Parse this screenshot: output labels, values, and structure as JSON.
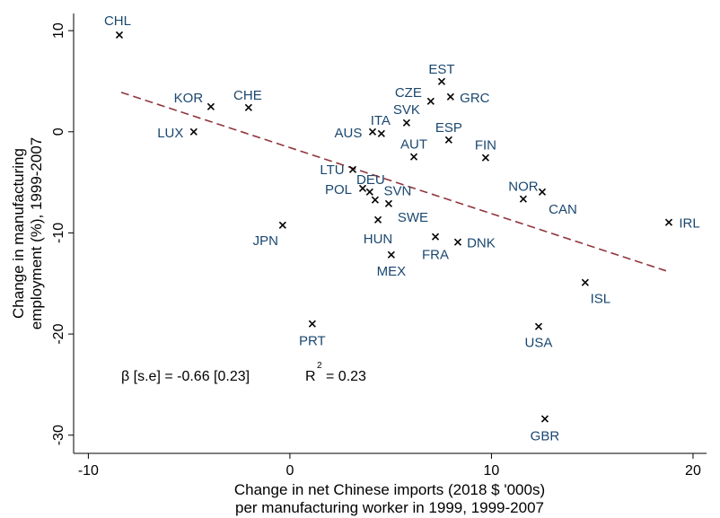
{
  "chart_data": {
    "type": "scatter",
    "x_label": [
      "Change in net Chinese imports (2018 $ '000s)",
      "per manufacturing worker in 1999, 1999-2007"
    ],
    "y_label": [
      "Change in manufacturing",
      "employment (%), 1999-2007"
    ],
    "annotation": [
      "β [s.e] = -0.66 [0.23]",
      "R",
      "2",
      "= 0.23"
    ],
    "labels": [
      "CHL",
      "KOR",
      "CHE",
      "LUX",
      "AUS",
      "ITA",
      "EST",
      "CZE",
      "GRC",
      "SVK",
      "ESP",
      "AUT",
      "FIN",
      "LTU",
      "DEU",
      "POL",
      "SVN",
      "SWE",
      "NOR",
      "CAN",
      "IRL",
      "JPN",
      "HUN",
      "FRA",
      "DNK",
      "MEX",
      "ISL",
      "PRT",
      "USA",
      "GBR"
    ],
    "x": [
      -8.46,
      -3.92,
      -2.05,
      -4.77,
      4.1,
      4.54,
      7.53,
      6.99,
      7.97,
      5.79,
      7.88,
      6.15,
      9.71,
      3.12,
      3.96,
      3.61,
      4.23,
      4.9,
      11.58,
      12.52,
      18.8,
      -0.36,
      4.37,
      7.22,
      8.33,
      5.03,
      14.65,
      1.11,
      12.34,
      12.65
    ],
    "y": [
      9.58,
      2.48,
      2.4,
      0.0,
      0.0,
      -0.18,
      4.97,
      3.02,
      3.46,
      0.89,
      -0.8,
      -2.48,
      -2.57,
      -3.73,
      -5.95,
      -5.59,
      -6.74,
      -7.1,
      -6.65,
      -5.95,
      -8.96,
      -9.23,
      -8.7,
      -10.38,
      -10.91,
      -12.16,
      -14.91,
      -18.99,
      -19.25,
      -28.39
    ],
    "marker_color": "#000000",
    "label_color": "#1a476f",
    "fit_line": {
      "x": [
        -8.37,
        18.66
      ],
      "y": [
        3.9,
        -13.75
      ],
      "color": "#90353b"
    },
    "xlim": [
      -10.73,
      20.67
    ],
    "ylim": [
      -31.8,
      11.7
    ],
    "xticks": [
      -10,
      0,
      10,
      20
    ],
    "yticks": [
      10,
      0,
      -10,
      -20,
      -30
    ]
  }
}
